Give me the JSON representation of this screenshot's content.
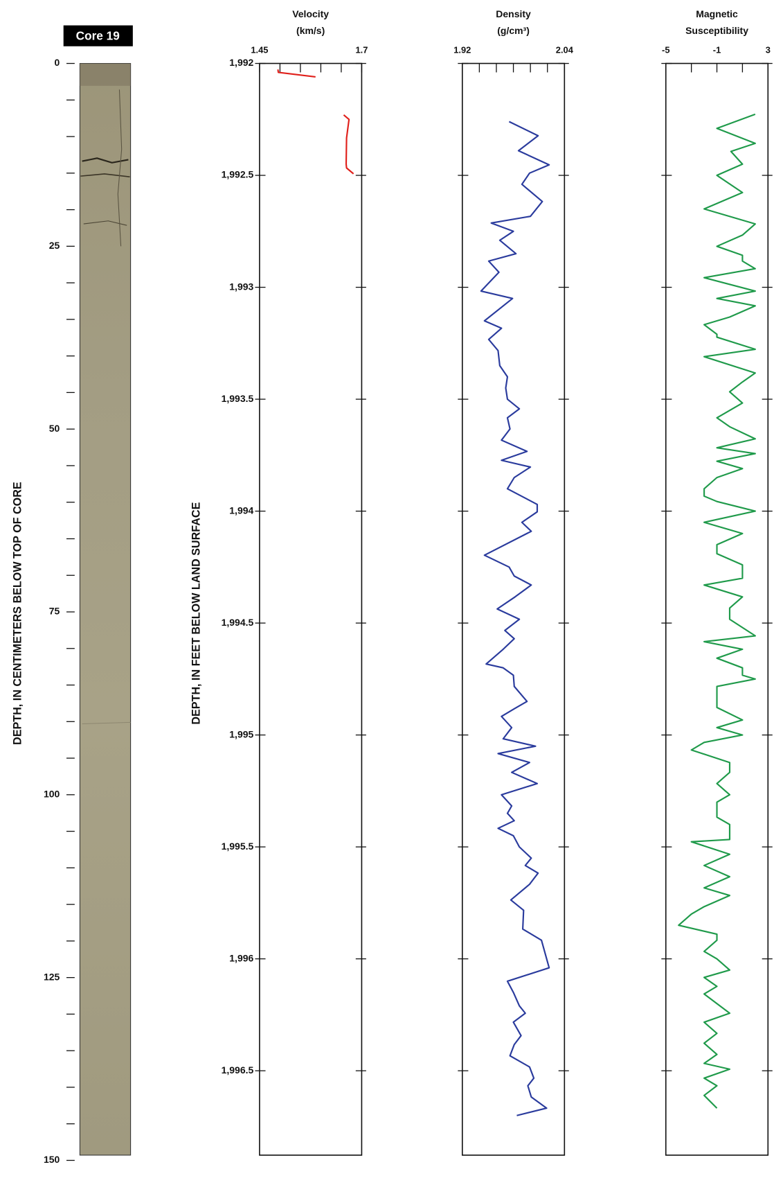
{
  "chart_data": [
    {
      "type": "core",
      "title": "Core 19",
      "ylabel": "DEPTH, IN CENTIMETERS BELOW TOP OF CORE",
      "ylim": [
        0,
        150
      ],
      "yticks": [
        0,
        25,
        50,
        75,
        100,
        125,
        150
      ],
      "minor_yticks": [
        5,
        10,
        15,
        20,
        30,
        35,
        40,
        45,
        55,
        60,
        65,
        70,
        80,
        85,
        90,
        95,
        105,
        110,
        115,
        120,
        130,
        135,
        140,
        145
      ]
    },
    {
      "type": "line",
      "title_lines": [
        "Velocity",
        "(km/s)"
      ],
      "ylabel": "DEPTH, IN FEET BELOW LAND SURFACE",
      "xlim": [
        1.45,
        1.7
      ],
      "xticks": [
        1.45,
        1.7
      ],
      "minor_xticks": [
        1.5,
        1.55,
        1.6,
        1.65
      ],
      "ylim": [
        1992,
        1996.877
      ],
      "yticks": [
        {
          "value": 1992,
          "label": "1,992"
        },
        {
          "value": 1992.5,
          "label": "1,992.5"
        },
        {
          "value": 1993,
          "label": "1,993"
        },
        {
          "value": 1993.5,
          "label": "1,993.5"
        },
        {
          "value": 1994,
          "label": "1,994"
        },
        {
          "value": 1994.5,
          "label": "1,994.5"
        },
        {
          "value": 1995,
          "label": "1,995"
        },
        {
          "value": 1995.5,
          "label": "1,995.5"
        },
        {
          "value": 1996,
          "label": "1,996"
        },
        {
          "value": 1996.5,
          "label": "1,996.5"
        }
      ],
      "series": [
        {
          "color": "#e0201b",
          "depth": [
            1992.027,
            1992.04,
            1992.06,
            null,
            1992.23,
            1992.25,
            1992.333,
            1992.45,
            1992.467,
            1992.493
          ],
          "values": [
            1.495,
            1.496,
            1.587,
            null,
            1.656,
            1.669,
            1.663,
            1.662,
            1.663,
            1.68
          ]
        }
      ]
    },
    {
      "type": "line",
      "title_lines": [
        "Density",
        "(g/cm³)"
      ],
      "xlim": [
        1.92,
        2.04
      ],
      "xticks": [
        1.92,
        2.04
      ],
      "minor_xticks": [
        1.94,
        1.96,
        1.98,
        2.0,
        2.02
      ],
      "ylim": [
        1992,
        1996.877
      ],
      "yticks": [
        1992,
        1992.5,
        1993,
        1993.5,
        1994,
        1994.5,
        1995,
        1995.5,
        1996,
        1996.5
      ],
      "series": [
        {
          "color": "#2a3b9d",
          "depth": [
            1992.26,
            1992.323,
            1992.39,
            1992.453,
            1992.49,
            1992.54,
            1992.617,
            1992.683,
            1992.713,
            1992.75,
            1992.79,
            1992.85,
            1992.883,
            1992.933,
            1993.017,
            1993.05,
            1993.15,
            1993.183,
            1993.233,
            1993.283,
            1993.35,
            1993.4,
            1993.45,
            1993.5,
            1993.543,
            1993.583,
            1993.633,
            1993.683,
            1993.733,
            1993.773,
            1993.803,
            1993.85,
            1993.9,
            1993.97,
            1994.003,
            1994.05,
            1994.09,
            1994.197,
            1994.25,
            1994.29,
            1994.33,
            1994.383,
            1994.437,
            1994.483,
            1994.533,
            1994.57,
            1994.617,
            1994.683,
            1994.7,
            1994.733,
            1994.783,
            1994.85,
            1994.883,
            1994.917,
            1994.967,
            1995.017,
            1995.05,
            1995.083,
            1995.123,
            1995.167,
            1995.217,
            1995.267,
            1995.317,
            1995.35,
            1995.383,
            1995.417,
            1995.45,
            1995.5,
            1995.55,
            1995.583,
            1995.617,
            1995.667,
            1995.737,
            1995.783,
            1995.867,
            1995.917,
            1996.04,
            1996.1,
            1996.15,
            1996.21,
            1996.243,
            1996.283,
            1996.343,
            1996.383,
            1996.433,
            1996.483,
            1996.533,
            1996.567,
            1996.617,
            1996.667,
            1996.7
          ],
          "values": [
            1.975,
            2.009,
            1.986,
            2.022,
            1.999,
            1.99,
            2.014,
            2.0,
            1.954,
            1.98,
            1.964,
            1.983,
            1.951,
            1.963,
            1.942,
            1.979,
            1.946,
            1.966,
            1.951,
            1.962,
            1.964,
            1.973,
            1.971,
            1.973,
            1.987,
            1.973,
            1.976,
            1.966,
            1.996,
            1.966,
            2.0,
            1.981,
            1.973,
            2.008,
            2.008,
            1.99,
            2.001,
            1.946,
            1.975,
            1.981,
            2.001,
            1.982,
            1.961,
            1.987,
            1.97,
            1.981,
            1.968,
            1.948,
            1.968,
            1.98,
            1.981,
            1.996,
            1.981,
            1.966,
            1.978,
            1.968,
            2.006,
            1.962,
            1.999,
            1.978,
            2.008,
            1.966,
            1.978,
            1.973,
            1.981,
            1.962,
            1.98,
            1.987,
            2.001,
            1.994,
            2.009,
            1.999,
            1.977,
            1.992,
            1.991,
            2.013,
            2.022,
            1.973,
            1.98,
            1.987,
            1.994,
            1.98,
            1.989,
            1.981,
            1.976,
            1.999,
            2.004,
            1.997,
            2.001,
            2.019,
            1.984
          ]
        }
      ]
    },
    {
      "type": "line",
      "title_lines": [
        "Magnetic",
        "Susceptibility"
      ],
      "xlim": [
        -5,
        3
      ],
      "xticks": [
        -5,
        -1,
        3
      ],
      "minor_xticks": [
        -3,
        1
      ],
      "ylim": [
        1992,
        1996.877
      ],
      "yticks": [
        1992,
        1992.5,
        1993,
        1993.5,
        1994,
        1994.5,
        1995,
        1995.5,
        1996,
        1996.5
      ],
      "series": [
        {
          "color": "#1f9a4a",
          "depth": [
            1992.227,
            1992.29,
            1992.357,
            1992.393,
            1992.45,
            1992.5,
            1992.577,
            1992.65,
            1992.717,
            1992.767,
            1992.817,
            1992.857,
            1992.883,
            1992.917,
            1992.957,
            1993.017,
            1993.05,
            1993.083,
            1993.133,
            1993.167,
            1993.21,
            1993.223,
            1993.277,
            1993.31,
            1993.383,
            1993.423,
            1993.467,
            1993.517,
            1993.583,
            1993.623,
            1993.677,
            1993.717,
            1993.743,
            1993.777,
            1993.81,
            1993.85,
            1993.9,
            1993.933,
            1993.957,
            1994.0,
            1994.05,
            1994.1,
            1994.15,
            1994.19,
            1994.24,
            1994.3,
            1994.33,
            1994.383,
            1994.433,
            1994.483,
            1994.557,
            1994.583,
            1994.617,
            1994.657,
            1994.7,
            1994.733,
            1994.75,
            1994.783,
            1994.833,
            1994.877,
            1994.933,
            1994.967,
            1995.0,
            1995.033,
            1995.067,
            1995.123,
            1995.167,
            1995.217,
            1995.267,
            1995.3,
            1995.367,
            1995.4,
            1995.467,
            1995.477,
            1995.533,
            1995.583,
            1995.633,
            1995.683,
            1995.717,
            1995.767,
            1995.8,
            1995.85,
            1995.89,
            1995.917,
            1995.967,
            1996.0,
            1996.05,
            1996.083,
            1996.123,
            1996.157,
            1996.2,
            1996.243,
            1996.283,
            1996.333,
            1996.377,
            1996.427,
            1996.467,
            1996.493,
            1996.533,
            1996.567,
            1996.61,
            1996.667
          ],
          "values": [
            2,
            -1,
            2,
            0.1,
            1,
            -1,
            1,
            -2,
            2,
            1,
            -1,
            1,
            1,
            2,
            -2,
            2,
            -1,
            2,
            0,
            -2,
            -1,
            -1,
            2,
            -2,
            2,
            1,
            0,
            1,
            -1,
            0,
            2,
            -1,
            2,
            -1,
            1,
            -1,
            -2,
            -2,
            -1,
            2,
            -2,
            1,
            -1,
            -1,
            1,
            1,
            -2,
            1,
            0,
            0,
            2,
            -2,
            1,
            -1,
            1,
            1,
            2,
            -1,
            -1,
            -1,
            1,
            -1,
            1,
            -2,
            -3,
            0,
            0,
            -1,
            0,
            -1,
            -1,
            0,
            0,
            -3,
            0,
            -2,
            0,
            -2,
            0,
            -2,
            -3,
            -4,
            -1,
            -1,
            -2,
            -1,
            0,
            -2,
            -1,
            -2,
            -1,
            0,
            -2,
            -1,
            -2,
            -1,
            -2,
            0,
            -2,
            -1,
            -2,
            -1
          ]
        }
      ]
    }
  ]
}
